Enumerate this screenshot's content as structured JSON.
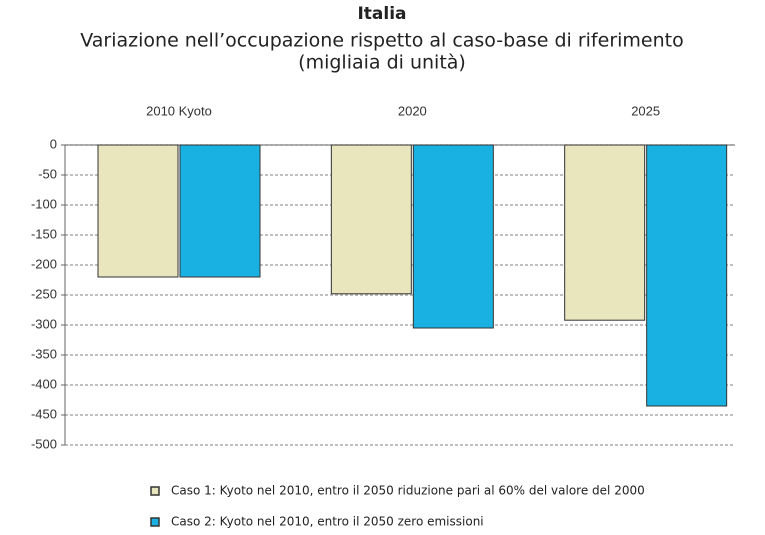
{
  "chart_data": {
    "type": "bar",
    "title": "Italia",
    "subtitle": "Variazione nell’occupazione rispetto al caso-base di riferimento",
    "units": "(migliaia di unità)",
    "categories": [
      "2010 Kyoto",
      "2020",
      "2025"
    ],
    "series": [
      {
        "name": "Caso 1: Kyoto nel 2010, entro il 2050 riduzione pari al 60% del valore del 2000",
        "color": "#e9e5bd",
        "values": [
          -220,
          -248,
          -292
        ]
      },
      {
        "name": "Caso 2: Kyoto nel 2010, entro il 2050 zero emissioni",
        "color": "#19b1e2",
        "values": [
          -220,
          -305,
          -435
        ]
      }
    ],
    "ylim": [
      -500,
      0
    ],
    "yticks": [
      0,
      -50,
      -100,
      -150,
      -200,
      -250,
      -300,
      -350,
      -400,
      -450,
      -500
    ],
    "grid": true
  }
}
